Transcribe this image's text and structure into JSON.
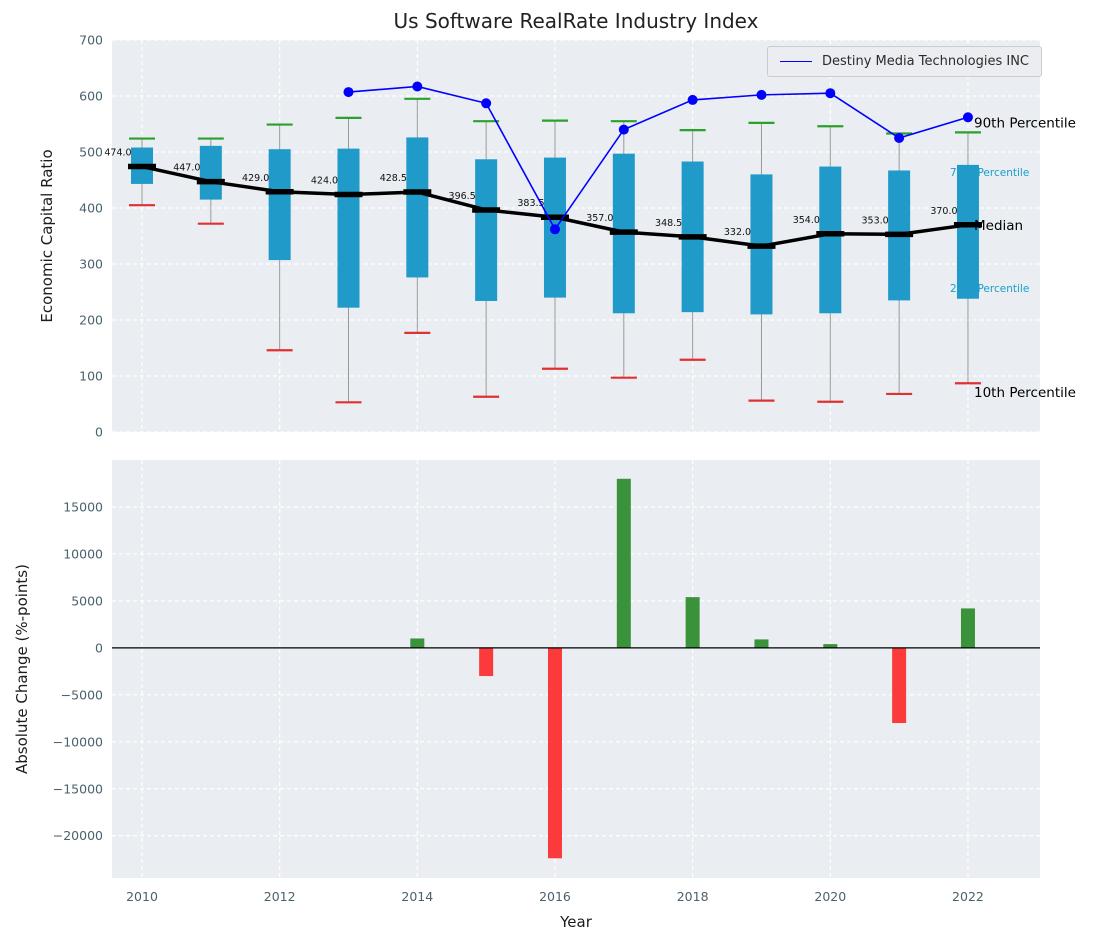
{
  "figure": {
    "background": "#ffffff",
    "panel_background": "#eaedf1",
    "grid_color": "#ffffff",
    "tick_color": "#4a626e"
  },
  "chart_data": [
    {
      "type": "boxplot",
      "title": "Us Software RealRate Industry Index",
      "ylabel": "Economic Capital Ratio",
      "ylim": [
        0,
        700
      ],
      "yticks": [
        0,
        100,
        200,
        300,
        400,
        500,
        600,
        700
      ],
      "xticks": [
        2010,
        2012,
        2014,
        2016,
        2018,
        2020,
        2022
      ],
      "grid": true,
      "legend_position": "upper right",
      "years": [
        2010,
        2011,
        2012,
        2013,
        2014,
        2015,
        2016,
        2017,
        2018,
        2019,
        2020,
        2021,
        2022
      ],
      "median": [
        474.0,
        447.0,
        429.0,
        424.0,
        428.5,
        396.5,
        383.5,
        357.0,
        348.5,
        332.0,
        354.0,
        353.0,
        370.0
      ],
      "median_labels": [
        "474.0",
        "447.0",
        "429.0",
        "424.0",
        "428.5",
        "396.5",
        "383.5",
        "357.0",
        "348.5",
        "332.0",
        "354.0",
        "353.0",
        "370.0"
      ],
      "p25": [
        443,
        415,
        307,
        222,
        276,
        234,
        240,
        212,
        214,
        210,
        212,
        235,
        238
      ],
      "p75": [
        508,
        511,
        505,
        506,
        526,
        487,
        490,
        497,
        483,
        460,
        474,
        467,
        477
      ],
      "p10": [
        405,
        372,
        146,
        53,
        177,
        63,
        113,
        97,
        129,
        56,
        54,
        68,
        87
      ],
      "p90": [
        524,
        524,
        549,
        561,
        595,
        555,
        556,
        555,
        539,
        552,
        546,
        533,
        535
      ],
      "series": [
        {
          "name": "Destiny Media Technologies INC",
          "color": "#0000ff",
          "x": [
            2013,
            2014,
            2015,
            2016,
            2017,
            2018,
            2019,
            2020,
            2021,
            2022
          ],
          "y": [
            607,
            617,
            587,
            362,
            540,
            593,
            602,
            605,
            525,
            562
          ]
        }
      ],
      "legend": {
        "label": "Destiny Media Technologies INC"
      },
      "annotations": [
        {
          "text": "90th Percentile",
          "y": 553,
          "color": "#000000",
          "size": 13.5,
          "layer": "front"
        },
        {
          "text": "75th Percentile",
          "y": 464,
          "color": "#17a0c9",
          "size": 10.5,
          "layer": "back"
        },
        {
          "text": "Median",
          "y": 370,
          "color": "#000000",
          "size": 13.5,
          "layer": "front"
        },
        {
          "text": "25th Percentile",
          "y": 257,
          "color": "#17a0c9",
          "size": 10.5,
          "layer": "back"
        },
        {
          "text": "10th Percentile",
          "y": 71,
          "color": "#000000",
          "size": 13.5,
          "layer": "front"
        }
      ],
      "colors": {
        "box": "#1f9ac9",
        "whisker": "#9a9a9a",
        "cap_top": "#2ca02c",
        "cap_bottom": "#e03131",
        "median_line": "#000000"
      }
    },
    {
      "type": "bar",
      "ylabel": "Absolute Change (%-points)",
      "xlabel": "Year",
      "ylim": [
        -24500,
        20000
      ],
      "yticks": [
        -20000,
        -15000,
        -10000,
        -5000,
        0,
        5000,
        10000,
        15000
      ],
      "grid": true,
      "years": [
        2010,
        2011,
        2012,
        2013,
        2014,
        2015,
        2016,
        2017,
        2018,
        2019,
        2020,
        2021,
        2022
      ],
      "values": [
        null,
        null,
        null,
        null,
        1000,
        -3000,
        -22400,
        18000,
        5400,
        900,
        400,
        -8000,
        4200
      ],
      "colors": {
        "positive": "#3a923a",
        "negative": "#fb3b3b"
      }
    }
  ]
}
